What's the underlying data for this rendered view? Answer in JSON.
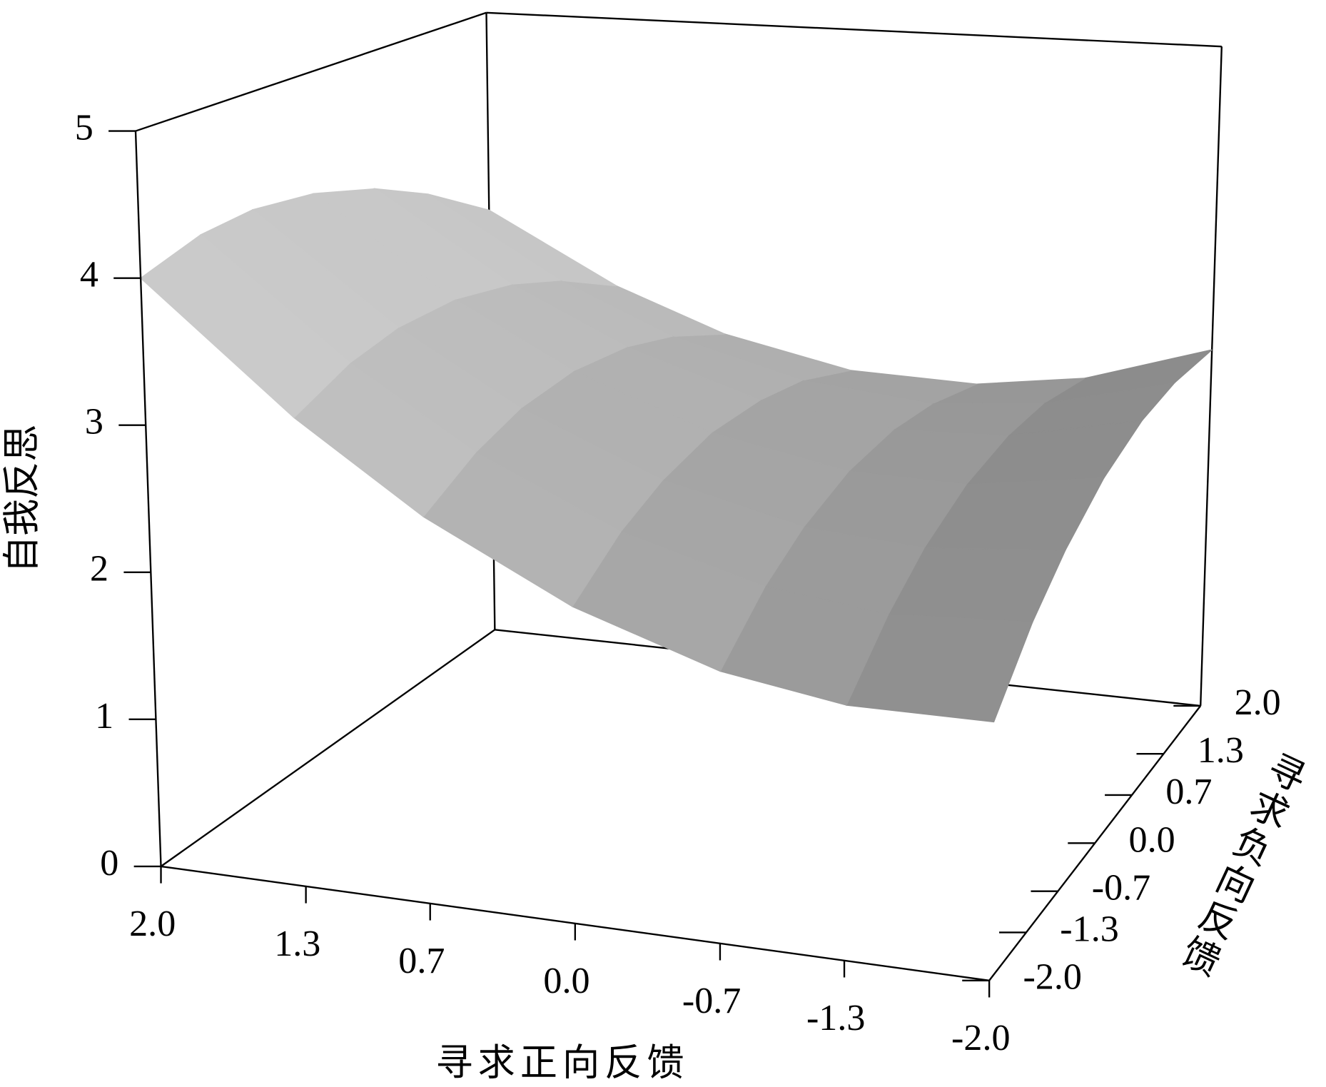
{
  "chart_data": {
    "type": "surface3d",
    "xlabel": "寻求正向反馈",
    "ylabel": "寻求负向反馈",
    "zlabel": "自我反思",
    "x": [
      -2,
      -1.3,
      -0.7,
      0,
      0.7,
      1.3,
      2
    ],
    "y": [
      -2,
      -1.3,
      -0.7,
      0,
      0.7,
      1.3,
      2
    ],
    "z": [
      [
        1.8,
        1.77,
        1.88,
        2.18,
        2.65,
        3.2,
        4.0
      ],
      [
        2.19,
        2.11,
        2.19,
        2.44,
        2.86,
        3.37,
        4.13
      ],
      [
        2.44,
        2.33,
        2.37,
        2.58,
        2.97,
        3.44,
        4.16
      ],
      [
        2.65,
        2.49,
        2.49,
        2.66,
        3.0,
        3.43,
        4.1
      ],
      [
        2.76,
        2.55,
        2.51,
        2.63,
        2.93,
        3.32,
        3.95
      ],
      [
        2.77,
        2.53,
        2.45,
        2.54,
        2.79,
        3.15,
        3.74
      ],
      [
        2.7,
        2.41,
        2.3,
        2.33,
        2.54,
        2.86,
        3.4
      ]
    ],
    "xlim": [
      -2,
      2
    ],
    "ylim": [
      -2,
      2
    ],
    "zlim": [
      0,
      5
    ],
    "xticks": [
      {
        "value": 2,
        "label": "2.0"
      },
      {
        "value": 1.3,
        "label": "1.3"
      },
      {
        "value": 0.7,
        "label": "0.7"
      },
      {
        "value": 0,
        "label": "0.0"
      },
      {
        "value": -0.7,
        "label": "-0.7"
      },
      {
        "value": -1.3,
        "label": "-1.3"
      },
      {
        "value": -2,
        "label": "-2.0"
      }
    ],
    "yticks": [
      {
        "value": 2,
        "label": "2.0"
      },
      {
        "value": 1.3,
        "label": "1.3"
      },
      {
        "value": 0.7,
        "label": "0.7"
      },
      {
        "value": 0,
        "label": "0.0"
      },
      {
        "value": -0.7,
        "label": "-0.7"
      },
      {
        "value": -1.3,
        "label": "-1.3"
      },
      {
        "value": -2,
        "label": "-2.0"
      }
    ],
    "zticks": [
      0,
      1,
      2,
      3,
      4,
      5
    ],
    "color": "#a8a8a8"
  }
}
